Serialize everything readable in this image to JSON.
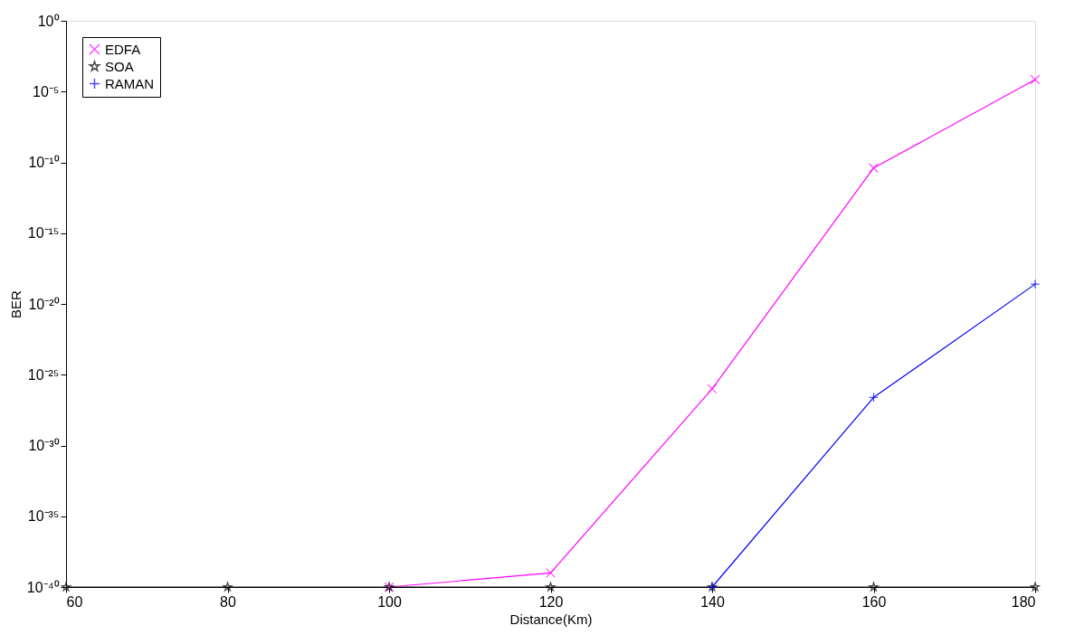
{
  "chart_data": {
    "type": "line",
    "xlabel": "Distance(Km)",
    "ylabel": "BER",
    "log": "y",
    "x": [
      60,
      80,
      100,
      120,
      140,
      160,
      180
    ],
    "series": [
      {
        "name": "EDFA",
        "color": "#ff00ff",
        "marker": "cross",
        "values": [
          null,
          null,
          1e-40,
          1e-39,
          1e-26,
          4e-11,
          7e-05
        ]
      },
      {
        "name": "SOA",
        "color": "#000000",
        "marker": "star",
        "values": [
          1e-40,
          1e-40,
          1e-40,
          1e-40,
          1e-40,
          1e-40,
          1e-40
        ]
      },
      {
        "name": "RAMAN",
        "color": "#0000ff",
        "marker": "plus",
        "values": [
          null,
          null,
          null,
          null,
          1e-40,
          2.5e-27,
          2.5e-19
        ]
      }
    ],
    "xlim": [
      60,
      180
    ],
    "xticks": [
      60,
      80,
      100,
      120,
      140,
      160,
      180
    ],
    "ylim": [
      1e-40,
      1
    ],
    "yticks": [
      {
        "value": 1e-40,
        "label": "10⁻⁴⁰"
      },
      {
        "value": 1e-35,
        "label": "10⁻³⁵"
      },
      {
        "value": 1e-30,
        "label": "10⁻³⁰"
      },
      {
        "value": 1e-25,
        "label": "10⁻²⁵"
      },
      {
        "value": 1e-20,
        "label": "10⁻²⁰"
      },
      {
        "value": 1e-15,
        "label": "10⁻¹⁵"
      },
      {
        "value": 1e-10,
        "label": "10⁻¹⁰"
      },
      {
        "value": 1e-05,
        "label": "10⁻⁵"
      },
      {
        "value": 1,
        "label": "10⁰"
      }
    ],
    "grid": false,
    "legend": "top left",
    "line_style": "solid"
  }
}
